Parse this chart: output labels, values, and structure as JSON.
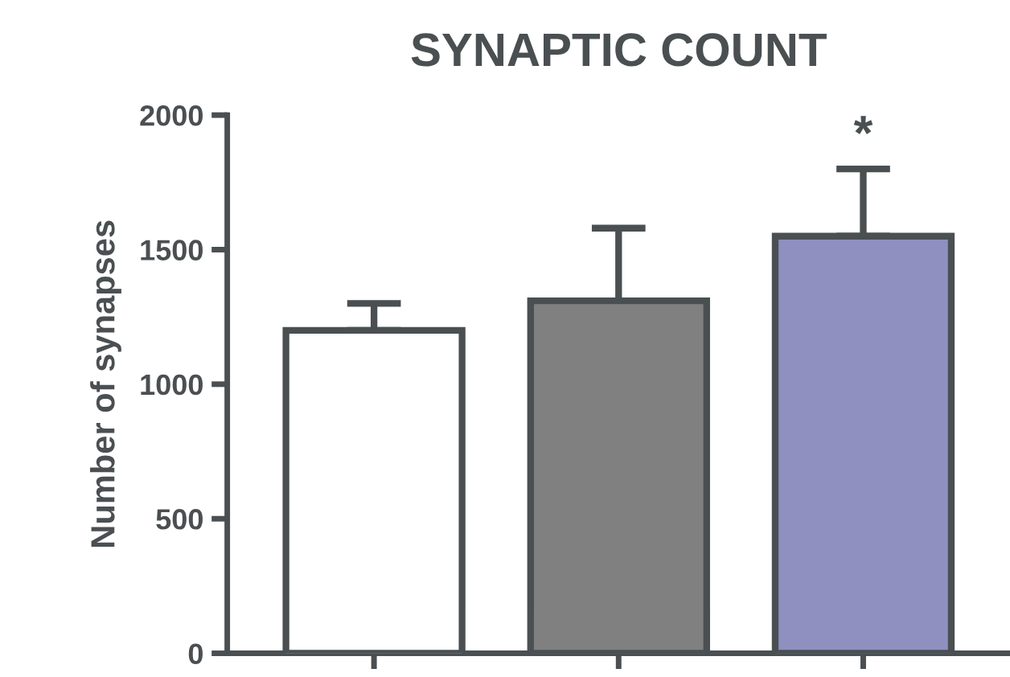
{
  "chart_data": {
    "type": "bar",
    "title": "SYNAPTIC COUNT",
    "ylabel": "Number of synapses",
    "categories": [
      null,
      null,
      null
    ],
    "values": [
      1200,
      1310,
      1550
    ],
    "colors": [
      "#ffffff",
      "#808080",
      "#8f8fc0"
    ],
    "errors": [
      [
        1200,
        1300
      ],
      [
        1310,
        1580
      ],
      [
        1550,
        1800
      ]
    ],
    "annotations": [
      {
        "text": "*",
        "y": 1800
      }
    ],
    "ylim": [
      0,
      2000
    ],
    "yticks": [
      0,
      500,
      1000,
      1500,
      2000
    ],
    "grid": false,
    "legend": false
  }
}
